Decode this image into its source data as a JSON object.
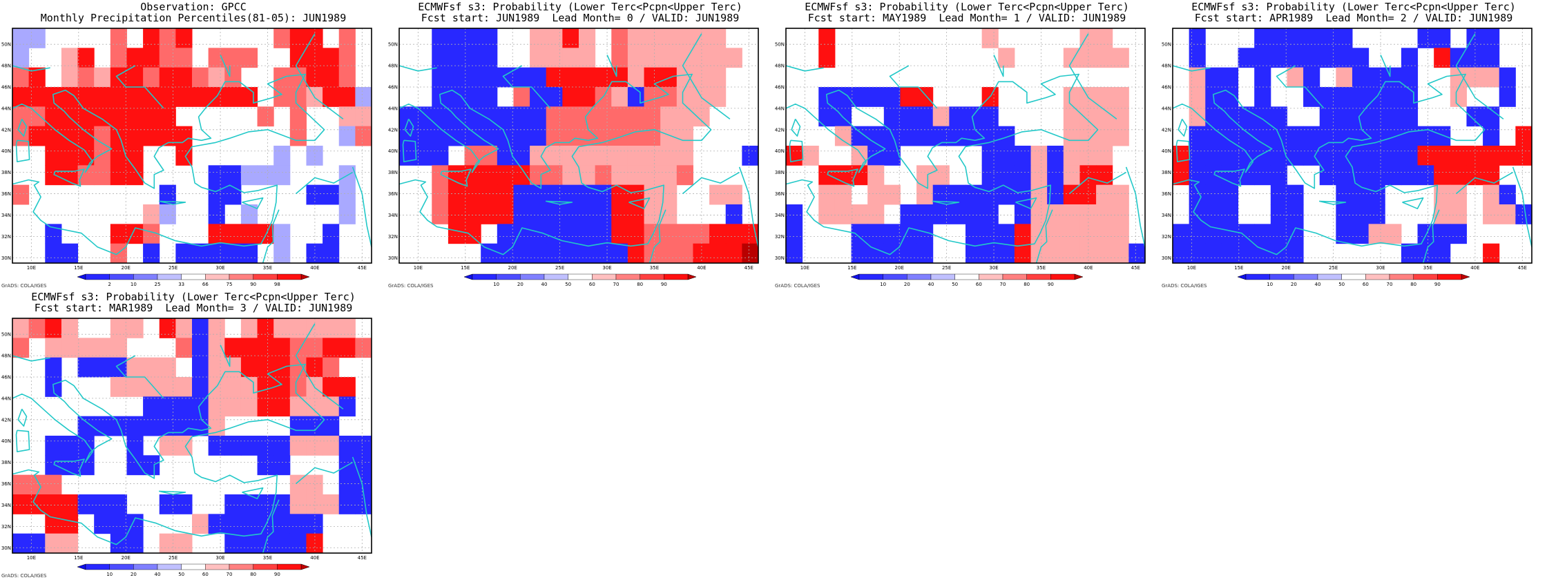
{
  "panels": [
    {
      "title_line1": "Observation: GPCC",
      "title_line2": "Monthly Precipitation Percentiles(81-05): JUN1989",
      "colorbar": {
        "labels": [
          "2",
          "10",
          "25",
          "33",
          "66",
          "75",
          "90",
          "98"
        ]
      },
      "credit": "GrADS: COLA/IGES",
      "grid": [
        "qq....r.RrR.....rRR.r.",
        "q..pR.rRRrr.rrr..RRRr.",
        "rR.prpRRrRRrpr..rrRRr.",
        "RRRRRRRRRRRRRRR.rrpRRq",
        "rrRRRRRRRR.....r.r..pp",
        "rRRRRrRRRRR......r..qr",
        "..RRRrRR..R.....q.q...",
        "..RRrrRR....BBqqq...q.",
        "r........B..BB....BBq.",
        "........pq..B.q.....q.",
        "..B...RRr...RRRRq..B..",
        "..BB..r.B.BBBBB.q.BB.."
      ]
    },
    {
      "title_line1": "ECMWFsf s3: Probability (Lower Terc<Pcpn<Upper Terc)",
      "title_line2": "Fcst start: JUN1989  Lead Month= 0 / VALID: JUN1989",
      "colorbar": {
        "labels": [
          "10",
          "20",
          "40",
          "50",
          "60",
          "70",
          "80",
          "90"
        ]
      },
      "credit": "GrADS: COLA/IGES",
      "grid": [
        "..BBBB..ppRp.rpppppp..",
        "..BBBB..pppp.rppppppp.",
        "..BBBBBBBRRRRRpRRppp..",
        "..BBBB.rBBRRrpBrrppp..",
        "BBBBBBBBBrrrrrrrppp...",
        "BBBBBBBBBrrrrrrrpp...",
        "BBB.rrBBpppppppppp...B",
        "..rRRRRRrrpprppppr....",
        "..rRRRRBBBBBBRRpp..pp.",
        "..rRRRRBBBBBBRRpp...B.",
        "...RR.BBBBBBBRRrrrrRRR",
        ".....BBBBBBBBBRrrrRRRD"
      ]
    },
    {
      "title_line1": "ECMWFsf s3: Probability (Lower Terc<Pcpn<Upper Terc)",
      "title_line2": "Fcst start: MAY1989  Lead Month= 1 / VALID: JUN1989",
      "colorbar": {
        "labels": [
          "10",
          "20",
          "40",
          "50",
          "60",
          "70",
          "80",
          "90"
        ]
      },
      "credit": "GrADS: COLA/IGES",
      "grid": [
        "..R.........p.....pp..",
        "..R..........p...pppp.",
        "......................",
        "..BBBBBRR...R....pppp.",
        "..BB..BBBpBBB....pppp.",
        "...pBBBBBBBBBB...pppp.",
        "Rp..pBB.....BBBpBppp..",
        "..RRRp..pp..BBBpBpRR..",
        "..pp.pp.pBBBBBBpBRRpp.",
        "B.pppp.BBBBBB.Bpppppp.",
        "B...BBBBB..BBBRpppppp.",
        "B...BBBBB..BBBRppppppB"
      ]
    },
    {
      "title_line1": "ECMWFsf s3: Probability (Lower Terc<Pcpn<Upper Terc)",
      "title_line2": "Fcst start: APR1989  Lead Month= 2 / VALID: JUN1989",
      "colorbar": {
        "labels": [
          "10",
          "20",
          "40",
          "50",
          "60",
          "70",
          "80",
          "90"
        ]
      },
      "credit": "GrADS: COLA/IGES",
      "grid": [
        ".B...BBBBBB....BB.BB..",
        ".B..BBBBBBBB..B.RBBB..",
        ".pBB.B.pB.pBBBB..pppB.",
        ".pBB.B..BBBBBBB..p..B.",
        ".pBBBBB..BBBBBB...BB..",
        ".BBBBBBBBBBBBBBBB..B.R",
        "RBBBBBBBBBBBBBBRRRRRRR",
        "RBBBBBB..BBBBBBBRRRR..",
        ".BBB..BB..BBB...pp.pB.",
        ".BBB..BB..BBB...pp.ppB",
        "BBBBBBBB..BBpp.BBB....",
        "BBBBBBBB......BBB..R.."
      ]
    },
    {
      "title_line1": "ECMWFsf s3: Probability (Lower Terc<Pcpn<Upper Terc)",
      "title_line2": "Fcst start: MAR1989  Lead Month= 3 / VALID: JUN1989",
      "colorbar": {
        "labels": [
          "10",
          "20",
          "40",
          "50",
          "60",
          "70",
          "80",
          "90"
        ]
      },
      "credit": "GrADS: COLA/IGES",
      "grid": [
        "prRp..pp.RpBp.pRppppp.",
        "r.ppppp...rBpRRRRrrRRr",
        "..B.BBBppp.BppRRRrRr..",
        "..B...pppppBpppRRrpRR.",
        "........BBBBpppRRpppB.",
        "....BBBBBBBBp....BBB..",
        "..BBB..B.pp.BBBBBpppBB",
        "..BBB..BB......BB...BB",
        "rrr..............pp.BB",
        "RRRRBBB..BB..BBBBpppBB",
        "..RR.BBB...pBBBBBBB...",
        "BBpp..BB.pp..BBBBBR..."
      ]
    }
  ]
}
